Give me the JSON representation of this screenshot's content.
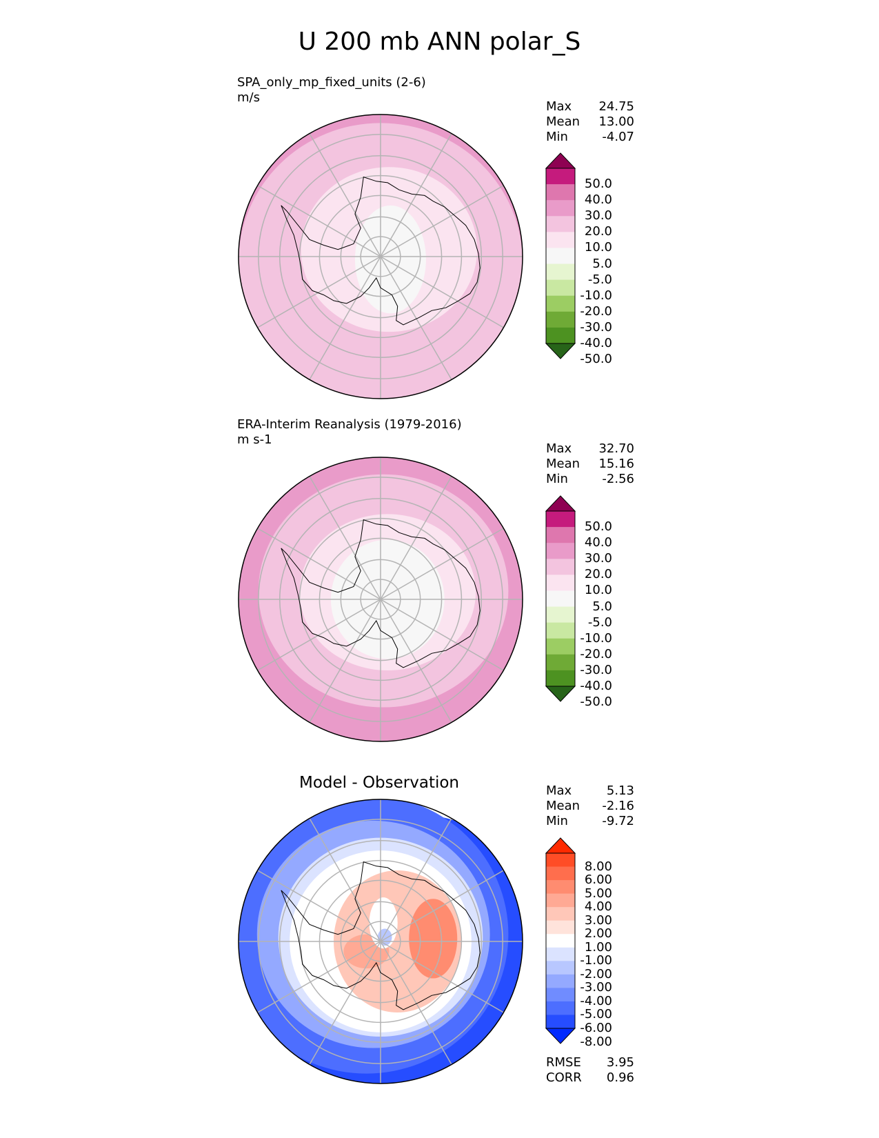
{
  "figure": {
    "title": "U 200 mb ANN polar_S"
  },
  "panels": [
    {
      "id": "model",
      "label": "SPA_only_mp_fixed_units (2-6)",
      "units": "m/s",
      "stats": [
        {
          "name": "Max",
          "value": "24.75"
        },
        {
          "name": "Mean",
          "value": "13.00"
        },
        {
          "name": "Min",
          "value": "-4.07"
        }
      ],
      "colorbar": {
        "labels": [
          "50.0",
          "40.0",
          "30.0",
          "20.0",
          "10.0",
          "5.0",
          "-5.0",
          "-10.0",
          "-20.0",
          "-30.0",
          "-40.0",
          "-50.0"
        ],
        "colors": [
          "#8e0152",
          "#c51b7d",
          "#de77ae",
          "#e99bc9",
          "#f3c4df",
          "#fbe4f0",
          "#f7f7f7",
          "#e6f5d0",
          "#c9e8a2",
          "#9ccd63",
          "#6faa36",
          "#4d9221",
          "#276419"
        ]
      },
      "fill_colors": {
        "outer": "#f3c4df",
        "ring_high": "#e99bc9",
        "inner": "#fbe4f0",
        "core": "#f7f7f7"
      }
    },
    {
      "id": "obs",
      "label": "ERA-Interim Reanalysis (1979-2016)",
      "units": "m s-1",
      "stats": [
        {
          "name": "Max",
          "value": "32.70"
        },
        {
          "name": "Mean",
          "value": "15.16"
        },
        {
          "name": "Min",
          "value": "-2.56"
        }
      ],
      "colorbar": {
        "labels": [
          "50.0",
          "40.0",
          "30.0",
          "20.0",
          "10.0",
          "5.0",
          "-5.0",
          "-10.0",
          "-20.0",
          "-30.0",
          "-40.0",
          "-50.0"
        ],
        "colors": [
          "#8e0152",
          "#c51b7d",
          "#de77ae",
          "#e99bc9",
          "#f3c4df",
          "#fbe4f0",
          "#f7f7f7",
          "#e6f5d0",
          "#c9e8a2",
          "#9ccd63",
          "#6faa36",
          "#4d9221",
          "#276419"
        ]
      },
      "fill_colors": {
        "outer": "#e99bc9",
        "ring_high": "#de77ae",
        "inner": "#f3c4df",
        "core": "#f7f7f7"
      }
    },
    {
      "id": "diff",
      "title": "Model - Observation",
      "stats": [
        {
          "name": "Max",
          "value": "5.13"
        },
        {
          "name": "Mean",
          "value": "-2.16"
        },
        {
          "name": "Min",
          "value": "-9.72"
        }
      ],
      "metrics": [
        {
          "name": "RMSE",
          "value": "3.95"
        },
        {
          "name": "CORR",
          "value": "0.96"
        }
      ],
      "colorbar": {
        "labels": [
          "8.00",
          "6.00",
          "5.00",
          "4.00",
          "3.00",
          "2.00",
          "1.00",
          "-1.00",
          "-2.00",
          "-3.00",
          "-4.00",
          "-5.00",
          "-6.00",
          "-8.00"
        ],
        "colors": [
          "#ff2a00",
          "#ff4d26",
          "#ff6e4d",
          "#ff8c70",
          "#ffa994",
          "#ffc7b8",
          "#ffe3db",
          "#ffffff",
          "#dbe3ff",
          "#b8c7ff",
          "#94a9ff",
          "#708cff",
          "#4d6eff",
          "#264dff",
          "#002aff"
        ]
      },
      "fill_colors": {
        "outer": "#4d6eff",
        "mid": "#94a9ff",
        "white": "#ffffff",
        "pos1": "#ffc7b8",
        "pos2": "#ff8c70",
        "neg_core": "#b8c7ff"
      }
    }
  ]
}
